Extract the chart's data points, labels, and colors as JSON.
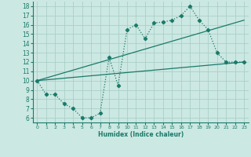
{
  "line1_x": [
    0,
    1,
    2,
    3,
    4,
    5,
    6,
    7,
    8,
    9,
    10,
    11,
    12,
    13,
    14,
    15,
    16,
    17,
    18,
    19,
    20,
    21,
    22,
    23
  ],
  "line1_y": [
    10,
    8.5,
    8.5,
    7.5,
    7,
    6,
    6,
    6.5,
    12.5,
    9.5,
    15.5,
    16,
    14.5,
    16.2,
    16.3,
    16.5,
    17,
    18,
    16.5,
    15.5,
    13,
    12,
    12,
    12
  ],
  "line2_x": [
    0,
    23
  ],
  "line2_y": [
    10,
    12
  ],
  "line3_x": [
    0,
    23
  ],
  "line3_y": [
    10,
    16.5
  ],
  "line_color": "#1a7a6a",
  "bg_color": "#cce8e2",
  "grid_color": "#aacfc8",
  "xlabel": "Humidex (Indice chaleur)",
  "xlim": [
    -0.5,
    23.5
  ],
  "ylim": [
    5.5,
    18.5
  ],
  "yticks": [
    6,
    7,
    8,
    9,
    10,
    11,
    12,
    13,
    14,
    15,
    16,
    17,
    18
  ],
  "xticks": [
    0,
    1,
    2,
    3,
    4,
    5,
    6,
    7,
    8,
    9,
    10,
    11,
    12,
    13,
    14,
    15,
    16,
    17,
    18,
    19,
    20,
    21,
    22,
    23
  ]
}
